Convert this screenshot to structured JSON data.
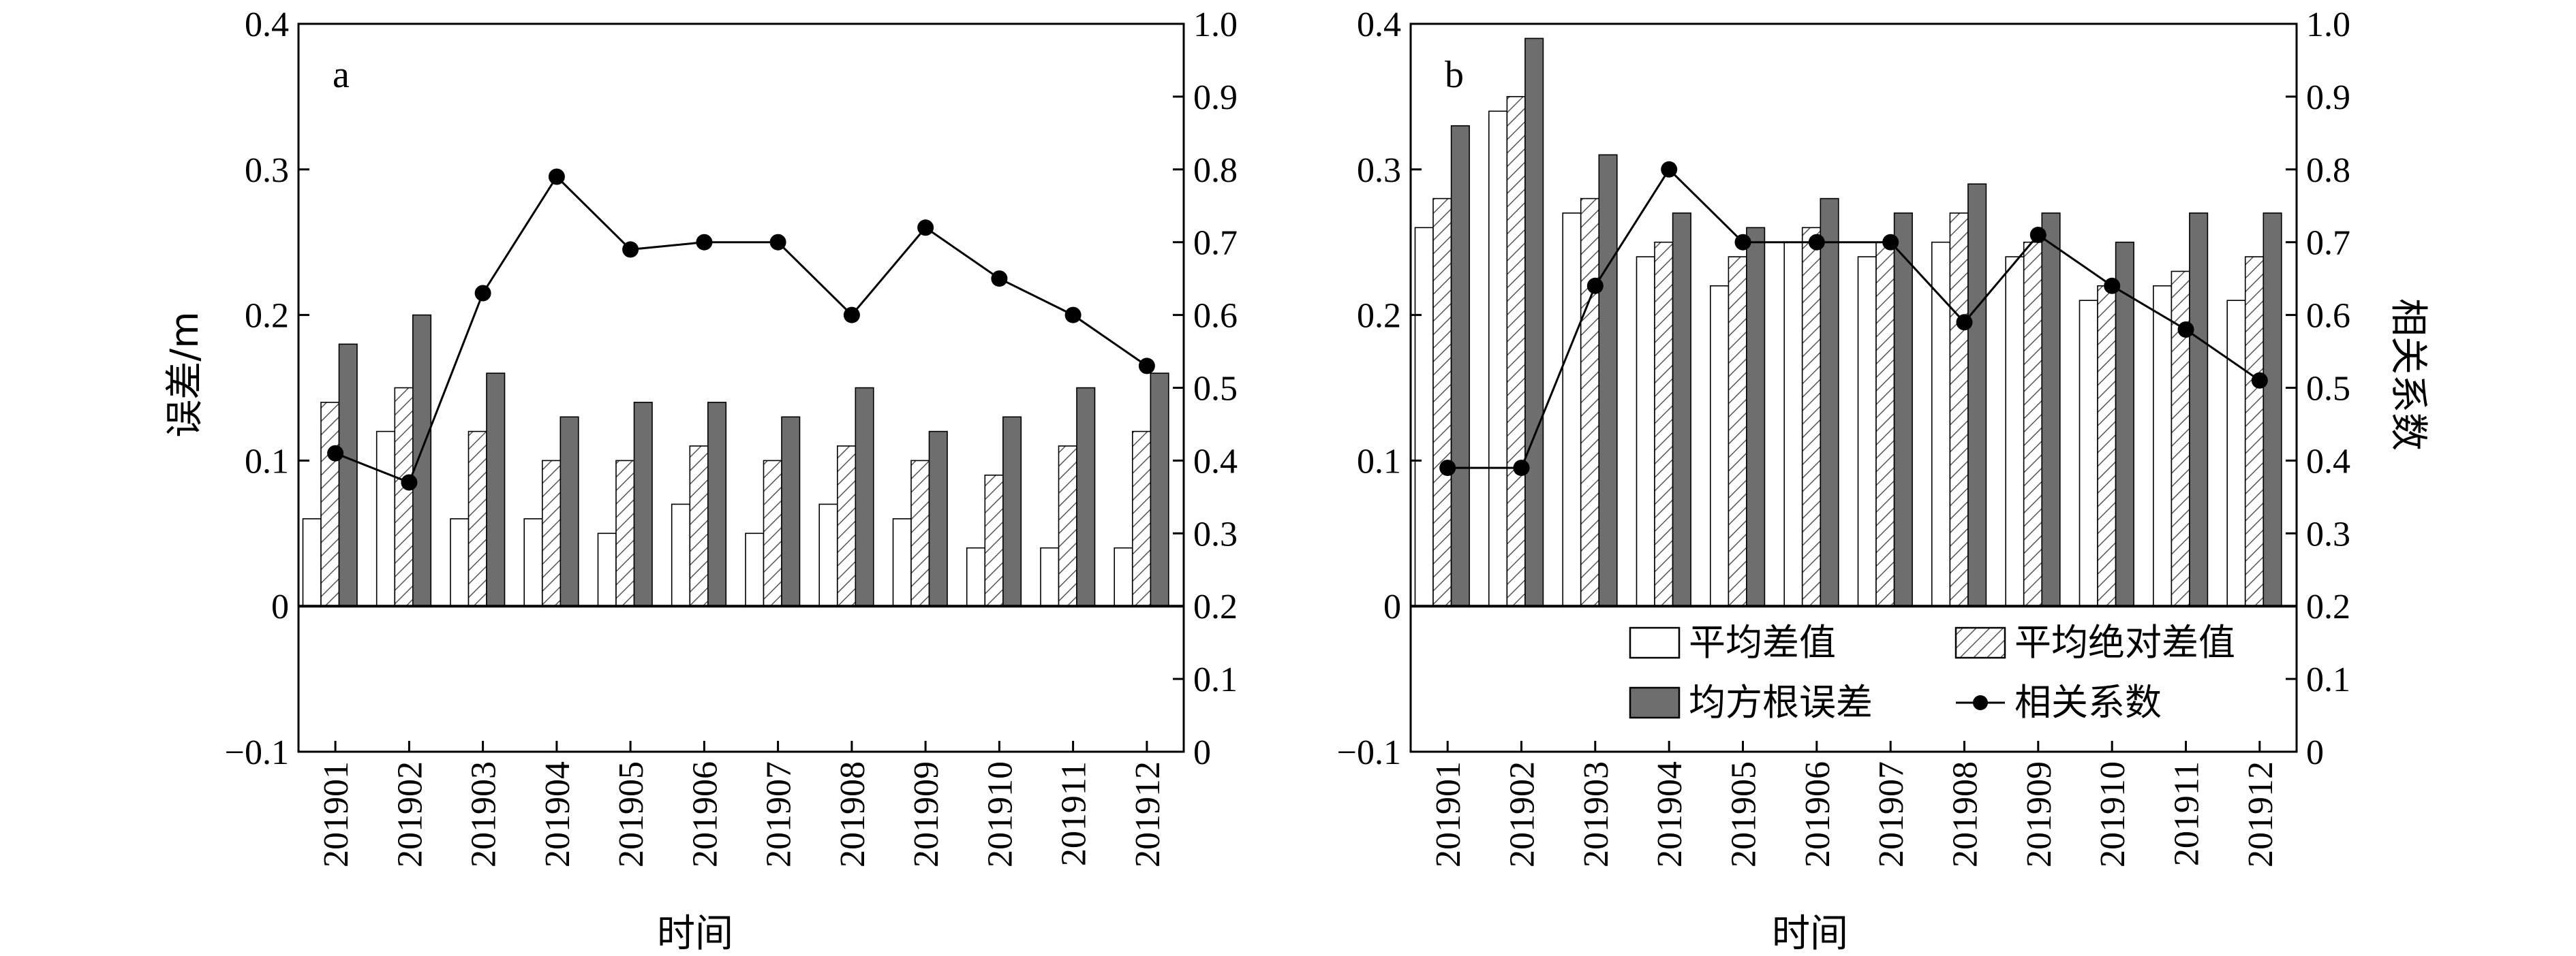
{
  "chart_data": [
    {
      "type": "bar",
      "panel_label": "a",
      "categories": [
        "201901",
        "201902",
        "201903",
        "201904",
        "201905",
        "201906",
        "201907",
        "201908",
        "201909",
        "201910",
        "201911",
        "201912"
      ],
      "series": [
        {
          "name": "平均差值",
          "kind": "bar",
          "style": "white",
          "values": [
            0.06,
            0.12,
            0.06,
            0.06,
            0.05,
            0.07,
            0.05,
            0.07,
            0.06,
            0.04,
            0.04,
            0.04
          ]
        },
        {
          "name": "平均绝对差值",
          "kind": "bar",
          "style": "hatched",
          "values": [
            0.14,
            0.15,
            0.12,
            0.1,
            0.1,
            0.11,
            0.1,
            0.11,
            0.1,
            0.09,
            0.11,
            0.12
          ]
        },
        {
          "name": "均方根误差",
          "kind": "bar",
          "style": "dark-gray",
          "values": [
            0.18,
            0.2,
            0.16,
            0.13,
            0.14,
            0.14,
            0.13,
            0.15,
            0.12,
            0.13,
            0.15,
            0.16
          ]
        },
        {
          "name": "相关系数",
          "kind": "line",
          "axis": "right",
          "values": [
            0.41,
            0.37,
            0.63,
            0.79,
            0.69,
            0.7,
            0.7,
            0.6,
            0.72,
            0.65,
            0.6,
            0.53
          ]
        }
      ],
      "xlabel": "时间",
      "ylabel": "误差/m",
      "ylabel_right": "",
      "ylim": [
        -0.1,
        0.4
      ],
      "ylim_right": [
        0,
        1.0
      ],
      "yticks": [
        "−0.1",
        "0",
        "0.1",
        "0.2",
        "0.3",
        "0.4"
      ],
      "yticks_right": [
        "0",
        "0.1",
        "0.2",
        "0.3",
        "0.4",
        "0.5",
        "0.6",
        "0.7",
        "0.8",
        "0.9",
        "1.0"
      ]
    },
    {
      "type": "bar",
      "panel_label": "b",
      "categories": [
        "201901",
        "201902",
        "201903",
        "201904",
        "201905",
        "201906",
        "201907",
        "201908",
        "201909",
        "201910",
        "201911",
        "201912"
      ],
      "series": [
        {
          "name": "平均差值",
          "kind": "bar",
          "style": "white",
          "values": [
            0.26,
            0.34,
            0.27,
            0.24,
            0.22,
            0.25,
            0.24,
            0.25,
            0.24,
            0.21,
            0.22,
            0.21
          ]
        },
        {
          "name": "平均绝对差值",
          "kind": "bar",
          "style": "hatched",
          "values": [
            0.28,
            0.35,
            0.28,
            0.25,
            0.24,
            0.26,
            0.25,
            0.27,
            0.25,
            0.22,
            0.23,
            0.24
          ]
        },
        {
          "name": "均方根误差",
          "kind": "bar",
          "style": "dark-gray",
          "values": [
            0.33,
            0.39,
            0.31,
            0.27,
            0.26,
            0.28,
            0.27,
            0.29,
            0.27,
            0.25,
            0.27,
            0.27
          ]
        },
        {
          "name": "相关系数",
          "kind": "line",
          "axis": "right",
          "values": [
            0.39,
            0.39,
            0.64,
            0.8,
            0.7,
            0.7,
            0.7,
            0.59,
            0.71,
            0.64,
            0.58,
            0.51
          ]
        }
      ],
      "xlabel": "时间",
      "ylabel": "",
      "ylabel_right": "相关系数",
      "ylim": [
        -0.1,
        0.4
      ],
      "ylim_right": [
        0,
        1.0
      ],
      "yticks": [
        "−0.1",
        "0",
        "0.1",
        "0.2",
        "0.3",
        "0.4"
      ],
      "yticks_right": [
        "0",
        "0.1",
        "0.2",
        "0.3",
        "0.4",
        "0.5",
        "0.6",
        "0.7",
        "0.8",
        "0.9",
        "1.0"
      ],
      "legend": {
        "placement": "lower-right",
        "entries": [
          "平均差值",
          "平均绝对差值",
          "均方根误差",
          "相关系数"
        ]
      }
    }
  ],
  "colors": {
    "bar_white": "#ffffff",
    "bar_hatched_line": "#555555",
    "bar_dark": "#6e6e6e",
    "line": "#000000",
    "axis": "#000000"
  }
}
